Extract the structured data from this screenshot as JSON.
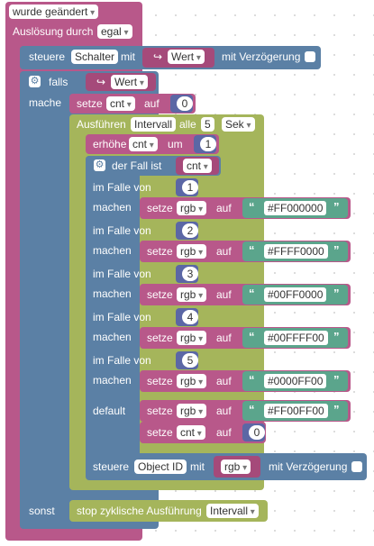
{
  "event": {
    "label": "wurde geändert",
    "trigger_label": "Auslösung durch",
    "trigger_value": "egal"
  },
  "control": {
    "label": "steuere",
    "target": "Schalter",
    "with": "mit",
    "value": "Wert",
    "delay_label": "mit Verzögerung"
  },
  "if": {
    "label": "falls",
    "condition": "Wert",
    "do_label": "mache",
    "else_label": "sonst"
  },
  "set_cnt": {
    "label": "setze",
    "var": "cnt",
    "to": "auf",
    "value": "0"
  },
  "interval": {
    "label": "Ausführen",
    "name": "Intervall",
    "every": "alle",
    "value": "5",
    "unit": "Sek"
  },
  "increment": {
    "label": "erhöhe",
    "var": "cnt",
    "by": "um",
    "value": "1"
  },
  "switch": {
    "label": "der Fall ist",
    "var": "cnt",
    "case_label": "im Falle von",
    "do_label": "machen",
    "default_label": "default"
  },
  "cases": [
    {
      "value": "1",
      "set_label": "setze",
      "var": "rgb",
      "to": "auf",
      "color": "#FF000000"
    },
    {
      "value": "2",
      "set_label": "setze",
      "var": "rgb",
      "to": "auf",
      "color": "#FFFF0000"
    },
    {
      "value": "3",
      "set_label": "setze",
      "var": "rgb",
      "to": "auf",
      "color": "#00FF0000"
    },
    {
      "value": "4",
      "set_label": "setze",
      "var": "rgb",
      "to": "auf",
      "color": "#00FFFF00"
    },
    {
      "value": "5",
      "set_label": "setze",
      "var": "rgb",
      "to": "auf",
      "color": "#0000FF00"
    }
  ],
  "default_case": {
    "set_label": "setze",
    "var": "rgb",
    "to": "auf",
    "color": "#FF00FF00",
    "set2_label": "setze",
    "var2": "cnt",
    "to2": "auf",
    "value2": "0"
  },
  "control2": {
    "label": "steuere",
    "target": "Object ID",
    "with": "mit",
    "value": "rgb",
    "delay_label": "mit Verzögerung"
  },
  "stop": {
    "label": "stop zyklische Ausführung",
    "name": "Intervall"
  },
  "quote_open": "“",
  "quote_close": "”",
  "icons": {
    "gear": "gear-icon",
    "arrow": "arrow-icon"
  },
  "colors": {
    "event": "#b8588a",
    "logic": "#5b80a5",
    "timer": "#a5b55b",
    "text": "#5ba58c",
    "math": "#5b67a5",
    "variable": "#a55b80"
  }
}
